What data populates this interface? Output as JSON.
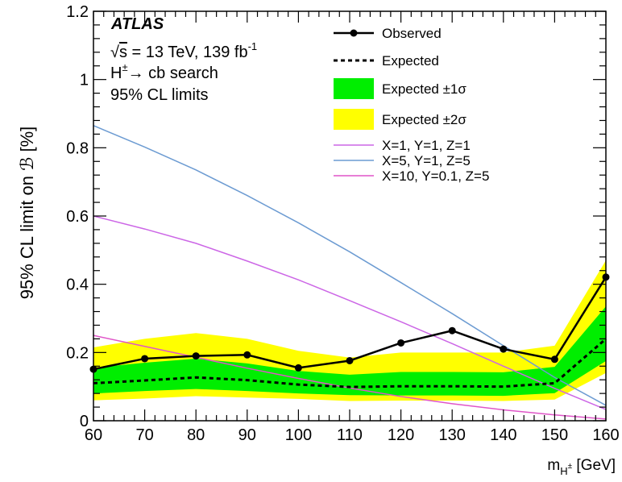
{
  "chart_data": {
    "type": "line",
    "x": [
      60,
      70,
      80,
      90,
      100,
      110,
      120,
      130,
      140,
      150,
      160
    ],
    "xlim": [
      60,
      160
    ],
    "ylim": [
      0,
      1.2
    ],
    "x_ticks": [
      60,
      70,
      80,
      90,
      100,
      110,
      120,
      130,
      140,
      150,
      160
    ],
    "y_ticks": [
      0,
      0.2,
      0.4,
      0.6,
      0.8,
      1,
      1.2
    ],
    "y_tick_labels": [
      "0",
      "0.2",
      "0.4",
      "0.6",
      "0.8",
      "1",
      "1.2"
    ],
    "xlabel": {
      "main": "m",
      "sub": "H",
      "sup": "±",
      "unit": " [GeV]"
    },
    "ylabel": "95% CL limit on ℬ [%]",
    "grid": false,
    "legend_position": "top-right",
    "info": {
      "experiment": "ATLAS",
      "energy_line": {
        "sqrt": "s",
        "text": " = 13 TeV, 139 fb",
        "sup": "-1"
      },
      "search_line": {
        "h": "H",
        "sup": "±",
        "text": "→ cb search"
      },
      "cl_line": "95% CL limits"
    },
    "series": [
      {
        "name": "Observed",
        "style": "solid-markers",
        "color": "#000000",
        "values": [
          0.151,
          0.182,
          0.19,
          0.193,
          0.155,
          0.176,
          0.228,
          0.264,
          0.21,
          0.18,
          0.421
        ]
      },
      {
        "name": "Expected",
        "style": "dashed",
        "color": "#000000",
        "values": [
          0.11,
          0.118,
          0.127,
          0.119,
          0.106,
          0.099,
          0.101,
          0.101,
          0.1,
          0.11,
          0.24
        ]
      },
      {
        "name": "X=1, Y=1, Z=1",
        "style": "solid",
        "color": "#cc66e6",
        "values": [
          0.6,
          0.562,
          0.52,
          0.468,
          0.413,
          0.352,
          0.29,
          0.226,
          0.16,
          0.095,
          0.033
        ]
      },
      {
        "name": "X=5, Y=1, Z=5",
        "style": "solid",
        "color": "#6c9bd2",
        "values": [
          0.865,
          0.802,
          0.735,
          0.66,
          0.58,
          0.495,
          0.405,
          0.314,
          0.22,
          0.127,
          0.045
        ]
      },
      {
        "name": "X=10, Y=0.1, Z=5",
        "style": "solid",
        "color": "#e055c8",
        "values": [
          0.25,
          0.218,
          0.186,
          0.154,
          0.124,
          0.096,
          0.071,
          0.05,
          0.032,
          0.017,
          0.005
        ]
      }
    ],
    "bands": [
      {
        "name": "Expected ±2σ",
        "color": "#ffff00",
        "lower": [
          0.06,
          0.065,
          0.072,
          0.068,
          0.064,
          0.058,
          0.059,
          0.059,
          0.058,
          0.062,
          0.14
        ],
        "upper": [
          0.215,
          0.24,
          0.257,
          0.24,
          0.205,
          0.185,
          0.2,
          0.2,
          0.2,
          0.22,
          0.47
        ]
      },
      {
        "name": "Expected ±1σ",
        "color": "#00ee00",
        "lower": [
          0.08,
          0.087,
          0.093,
          0.087,
          0.08,
          0.075,
          0.074,
          0.074,
          0.073,
          0.081,
          0.175
        ],
        "upper": [
          0.155,
          0.17,
          0.182,
          0.168,
          0.146,
          0.135,
          0.143,
          0.143,
          0.142,
          0.158,
          0.335
        ]
      }
    ],
    "legend": [
      {
        "label": "Observed",
        "kind": "line-marker"
      },
      {
        "label": "Expected",
        "kind": "dashed"
      },
      {
        "label": "Expected ±1σ",
        "kind": "box",
        "color": "#00ee00"
      },
      {
        "label": "Expected ±2σ",
        "kind": "box",
        "color": "#ffff00"
      },
      {
        "label": "X=1, Y=1, Z=1",
        "kind": "line",
        "color": "#cc66e6"
      },
      {
        "label": "X=5, Y=1, Z=5",
        "kind": "line",
        "color": "#6c9bd2"
      },
      {
        "label": "X=10, Y=0.1, Z=5",
        "kind": "line",
        "color": "#e055c8"
      }
    ]
  }
}
